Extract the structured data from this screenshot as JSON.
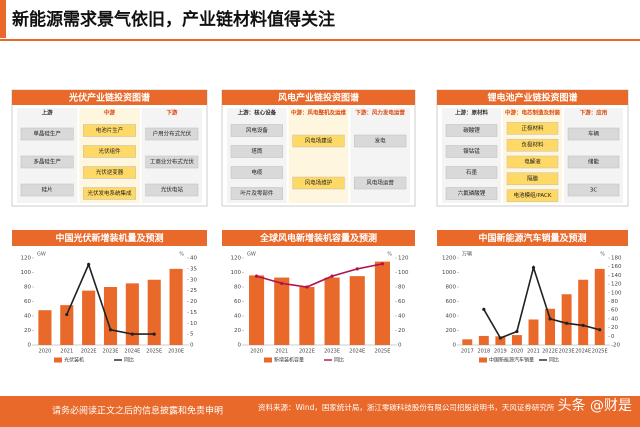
{
  "header": {
    "title": "新能源需求景气依旧，产业链材料值得关注"
  },
  "diagrams": [
    {
      "title": "光伏产业链投资图谱",
      "columns": [
        {
          "heading": "上游",
          "nodes": [
            "单晶硅生产",
            "多晶硅生产",
            "硅片"
          ]
        },
        {
          "heading": "中游",
          "nodes": [
            "电池片生产",
            "光伏组件",
            "光伏逆变器",
            "光伏发电系统集成"
          ]
        },
        {
          "heading": "下游",
          "nodes": [
            "户用分布式光伏",
            "工商业分布式光伏",
            "光伏电站"
          ]
        }
      ]
    },
    {
      "title": "风电产业链投资图谱",
      "columns": [
        {
          "heading": "上游：核心设备",
          "nodes": [
            "风电设备",
            "塔筒",
            "电缆",
            "叶片及零部件"
          ]
        },
        {
          "heading": "中游：风电整机及运维",
          "nodes": [
            "风电场建设",
            "风电场维护"
          ]
        },
        {
          "heading": "下游：风力发电运营",
          "nodes": [
            "发电",
            "风电场运营"
          ]
        }
      ]
    },
    {
      "title": "锂电池产业链投资图谱",
      "columns": [
        {
          "heading": "上游：原材料",
          "nodes": [
            "碳酸锂",
            "镍钴锰",
            "石墨",
            "六氟磷酸锂"
          ]
        },
        {
          "heading": "中游：电芯制造及封装",
          "nodes": [
            "正极材料",
            "负极材料",
            "电解液",
            "隔膜",
            "电池模组/PACK"
          ]
        },
        {
          "heading": "下游：应用",
          "nodes": [
            "车辆",
            "储能",
            "3C"
          ]
        }
      ]
    }
  ],
  "chart_data": [
    {
      "type": "bar",
      "title": "中国光伏新增装机量及预测",
      "unit": "GW",
      "y2unit": "%",
      "categories": [
        "2020",
        "2021",
        "2022E",
        "2023E",
        "2024E",
        "2025E",
        "2030E"
      ],
      "series": [
        {
          "name": "光伏装机",
          "type": "bar",
          "color": "#e8692a",
          "values": [
            48,
            55,
            75,
            80,
            85,
            90,
            105
          ]
        },
        {
          "name": "同比",
          "type": "line",
          "axis": "y2",
          "color": "#222222",
          "values": [
            null,
            14,
            37,
            7,
            5,
            5,
            null
          ]
        }
      ],
      "ylim": [
        0,
        120
      ],
      "yticks": [
        0,
        20,
        40,
        60,
        80,
        100,
        120
      ],
      "y2lim": [
        0,
        40
      ],
      "y2ticks": [
        0,
        5,
        10,
        15,
        20,
        25,
        30,
        35,
        40
      ]
    },
    {
      "type": "bar",
      "title": "全球风电新增装机容量及预测",
      "unit": "GW",
      "y2unit": "%",
      "categories": [
        "2020",
        "2021",
        "2022E",
        "2023E",
        "2024E",
        "2025E"
      ],
      "series": [
        {
          "name": "新增装机容量",
          "type": "bar",
          "color": "#e8692a",
          "values": [
            96,
            93,
            80,
            93,
            95,
            115
          ]
        },
        {
          "name": "同比",
          "type": "line",
          "axis": "y2",
          "color": "#b0124a",
          "values": [
            95,
            85,
            80,
            95,
            105,
            112
          ]
        }
      ],
      "ylim": [
        0,
        120
      ],
      "yticks": [
        0,
        20,
        40,
        60,
        80,
        100,
        120
      ],
      "y2lim": [
        0,
        120
      ],
      "y2ticks": [
        0,
        20,
        40,
        60,
        80,
        100,
        120
      ]
    },
    {
      "type": "bar",
      "title": "中国新能源汽车销量及预测",
      "unit": "万辆",
      "y2unit": "%",
      "categories": [
        "2017",
        "2018",
        "2019",
        "2020",
        "2021",
        "2022E",
        "2023E",
        "2024E",
        "2025E"
      ],
      "series": [
        {
          "name": "中国新能源汽车销量",
          "type": "bar",
          "color": "#e8692a",
          "values": [
            78,
            125,
            120,
            137,
            352,
            500,
            700,
            900,
            1050
          ]
        },
        {
          "name": "同比",
          "type": "line",
          "axis": "y2",
          "color": "#222222",
          "values": [
            null,
            62,
            -4,
            11,
            158,
            40,
            30,
            25,
            15
          ]
        }
      ],
      "ylim": [
        0,
        1200
      ],
      "yticks": [
        0,
        200,
        400,
        600,
        800,
        1000,
        1200
      ],
      "y2lim": [
        -20,
        180
      ],
      "y2ticks": [
        -20,
        0,
        20,
        40,
        60,
        80,
        100,
        120,
        140,
        160,
        180
      ]
    }
  ],
  "footer": {
    "disclaimer": "请务必阅读正文之后的信息披露和免责申明",
    "source": "资料来源：Wind，国家统计局，浙江零碳科技股份有限公司招股说明书，天风证券研究所",
    "watermark": "头条 @财是"
  }
}
